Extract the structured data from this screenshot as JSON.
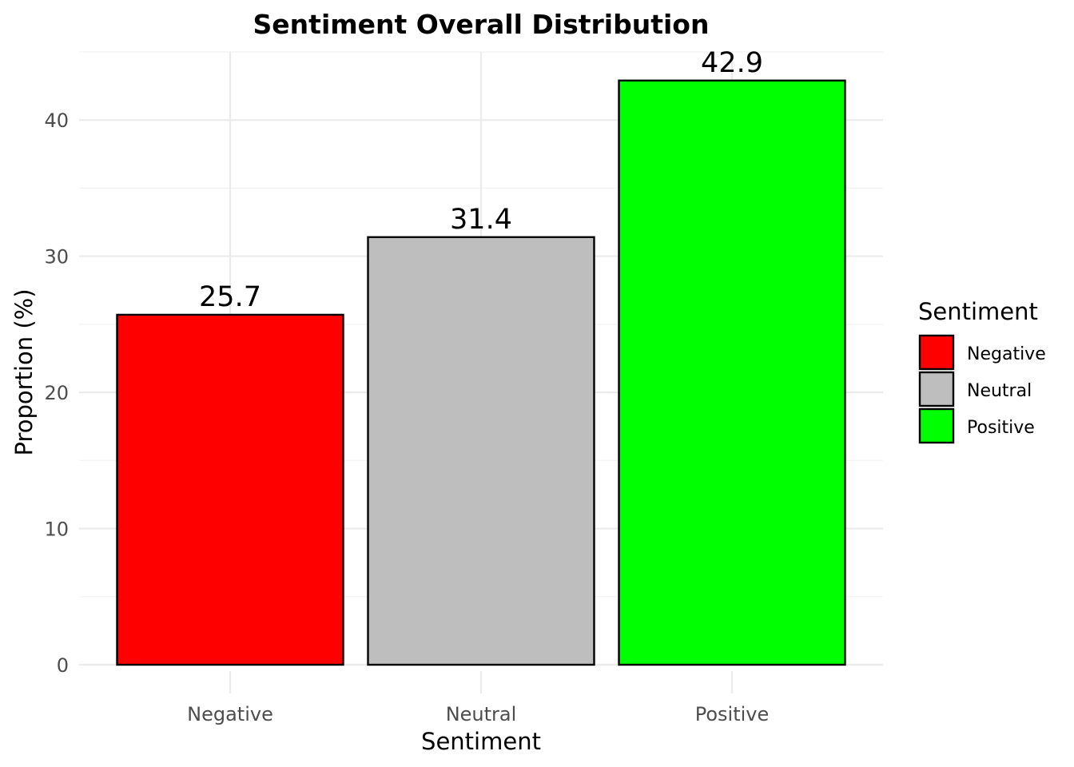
{
  "chart_data": {
    "type": "bar",
    "title": "Sentiment Overall Distribution",
    "xlabel": "Sentiment",
    "ylabel": "Proportion (%)",
    "categories": [
      "Negative",
      "Neutral",
      "Positive"
    ],
    "values": [
      25.7,
      31.4,
      42.9
    ],
    "data_labels": [
      "25.7",
      "31.4",
      "42.9"
    ],
    "colors": [
      "#ff0000",
      "#bebebe",
      "#00ff00"
    ],
    "ylim": [
      0,
      45
    ],
    "yticks": [
      0,
      10,
      20,
      30,
      40
    ],
    "grid": true,
    "legend": {
      "title": "Sentiment",
      "position": "right",
      "items": [
        "Negative",
        "Neutral",
        "Positive"
      ]
    }
  }
}
